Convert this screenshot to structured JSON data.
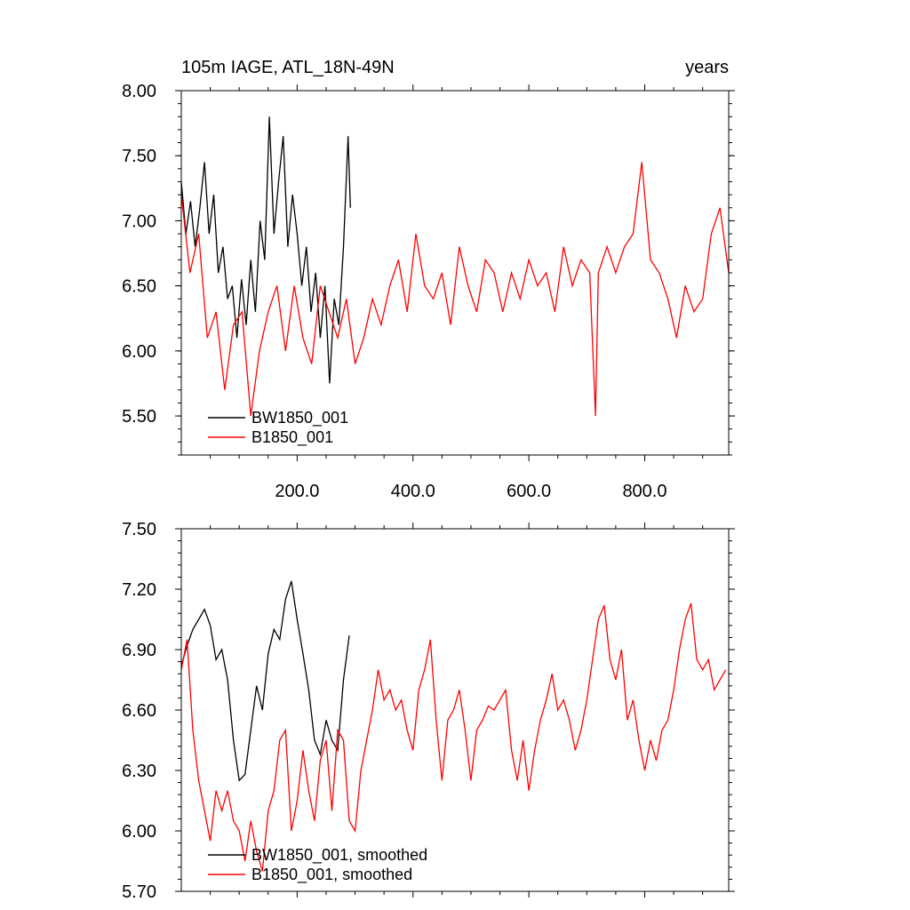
{
  "colors": {
    "bw": "#000000",
    "b": "#ff0000",
    "axis": "#000000"
  },
  "chart_data": [
    {
      "type": "line",
      "title": "105m IAGE, ATL_18N-49N",
      "units_label": "years",
      "xlabel": "",
      "ylabel": "",
      "xlim": [
        0,
        945
      ],
      "ylim": [
        5.2,
        8.0
      ],
      "x_ticks": [
        200,
        400,
        600,
        800
      ],
      "x_tick_labels": [
        "200.0",
        "400.0",
        "600.0",
        "800.0"
      ],
      "y_ticks": [
        5.5,
        6.0,
        6.5,
        7.0,
        7.5,
        8.0
      ],
      "y_tick_labels": [
        "5.50",
        "6.00",
        "6.50",
        "7.00",
        "7.50",
        "8.00"
      ],
      "legend_position": "bottom-left",
      "series": [
        {
          "name": "BW1850_001",
          "color": "#000000",
          "x": [
            0,
            8,
            16,
            24,
            32,
            40,
            48,
            56,
            64,
            72,
            80,
            88,
            96,
            104,
            112,
            120,
            128,
            136,
            144,
            152,
            160,
            168,
            176,
            184,
            192,
            200,
            208,
            216,
            224,
            232,
            240,
            248,
            256,
            264,
            272,
            280,
            288,
            292
          ],
          "values": [
            7.3,
            6.9,
            7.15,
            6.8,
            7.1,
            7.45,
            6.9,
            7.2,
            6.6,
            6.8,
            6.4,
            6.5,
            6.1,
            6.55,
            6.2,
            6.7,
            6.3,
            7.0,
            6.7,
            7.8,
            6.9,
            7.3,
            7.65,
            6.8,
            7.2,
            6.9,
            6.5,
            6.8,
            6.3,
            6.6,
            6.1,
            6.5,
            5.75,
            6.4,
            6.2,
            6.8,
            7.65,
            7.1
          ]
        },
        {
          "name": "B1850_001",
          "color": "#ff0000",
          "x": [
            0,
            15,
            30,
            45,
            60,
            75,
            90,
            105,
            120,
            135,
            150,
            165,
            180,
            195,
            210,
            225,
            240,
            255,
            270,
            285,
            300,
            315,
            330,
            345,
            360,
            375,
            390,
            405,
            420,
            435,
            450,
            465,
            480,
            495,
            510,
            525,
            540,
            555,
            570,
            585,
            600,
            615,
            630,
            645,
            660,
            675,
            690,
            705,
            715,
            720,
            735,
            750,
            765,
            780,
            795,
            810,
            825,
            840,
            855,
            870,
            885,
            900,
            915,
            930,
            945
          ],
          "values": [
            7.2,
            6.6,
            6.9,
            6.1,
            6.3,
            5.7,
            6.2,
            6.3,
            5.5,
            6.0,
            6.3,
            6.5,
            6.0,
            6.5,
            6.1,
            5.9,
            6.5,
            6.3,
            6.1,
            6.4,
            5.9,
            6.1,
            6.4,
            6.2,
            6.5,
            6.7,
            6.3,
            6.9,
            6.5,
            6.4,
            6.6,
            6.2,
            6.8,
            6.5,
            6.3,
            6.7,
            6.6,
            6.3,
            6.6,
            6.4,
            6.7,
            6.5,
            6.6,
            6.3,
            6.8,
            6.5,
            6.7,
            6.6,
            5.5,
            6.6,
            6.8,
            6.6,
            6.8,
            6.9,
            7.45,
            6.7,
            6.6,
            6.4,
            6.1,
            6.5,
            6.3,
            6.4,
            6.9,
            7.1,
            6.6
          ]
        }
      ]
    },
    {
      "type": "line",
      "title": "",
      "xlabel": "",
      "ylabel": "",
      "xlim": [
        0,
        945
      ],
      "ylim": [
        5.7,
        7.5
      ],
      "x_ticks": [
        200,
        400,
        600,
        800
      ],
      "x_tick_labels": [],
      "y_ticks": [
        5.7,
        6.0,
        6.3,
        6.6,
        6.9,
        7.2,
        7.5
      ],
      "y_tick_labels": [
        "5.70",
        "6.00",
        "6.30",
        "6.60",
        "6.90",
        "7.20",
        "7.50"
      ],
      "legend_position": "bottom-left",
      "series": [
        {
          "name": "BW1850_001, smoothed",
          "color": "#000000",
          "x": [
            0,
            10,
            20,
            30,
            40,
            50,
            60,
            70,
            80,
            90,
            100,
            110,
            120,
            130,
            140,
            150,
            160,
            170,
            180,
            190,
            200,
            210,
            220,
            230,
            240,
            250,
            260,
            270,
            280,
            290
          ],
          "values": [
            6.82,
            6.92,
            7.0,
            7.05,
            7.1,
            7.02,
            6.85,
            6.9,
            6.75,
            6.45,
            6.25,
            6.28,
            6.5,
            6.72,
            6.6,
            6.88,
            7.0,
            6.95,
            7.15,
            7.24,
            7.05,
            6.88,
            6.7,
            6.45,
            6.38,
            6.55,
            6.45,
            6.4,
            6.75,
            6.97
          ]
        },
        {
          "name": "B1850_001, smoothed",
          "color": "#ff0000",
          "x": [
            0,
            10,
            20,
            30,
            40,
            50,
            60,
            70,
            80,
            90,
            100,
            110,
            120,
            130,
            140,
            150,
            160,
            170,
            180,
            190,
            200,
            210,
            220,
            230,
            240,
            250,
            260,
            270,
            280,
            290,
            300,
            310,
            320,
            330,
            340,
            350,
            360,
            370,
            380,
            390,
            400,
            410,
            420,
            430,
            440,
            450,
            460,
            470,
            480,
            490,
            500,
            510,
            520,
            530,
            540,
            550,
            560,
            570,
            580,
            590,
            600,
            610,
            620,
            630,
            640,
            650,
            660,
            670,
            680,
            690,
            700,
            710,
            720,
            730,
            740,
            750,
            760,
            770,
            780,
            790,
            800,
            810,
            820,
            830,
            840,
            850,
            860,
            870,
            880,
            890,
            900,
            910,
            920,
            930,
            940
          ],
          "values": [
            6.8,
            6.95,
            6.5,
            6.25,
            6.1,
            5.95,
            6.2,
            6.1,
            6.2,
            6.05,
            6.0,
            5.85,
            6.05,
            5.9,
            5.8,
            6.1,
            6.2,
            6.45,
            6.5,
            6.0,
            6.15,
            6.4,
            6.2,
            6.05,
            6.35,
            6.45,
            6.1,
            6.5,
            6.45,
            6.05,
            6.0,
            6.3,
            6.45,
            6.6,
            6.8,
            6.65,
            6.7,
            6.6,
            6.65,
            6.5,
            6.4,
            6.7,
            6.8,
            6.95,
            6.55,
            6.25,
            6.55,
            6.6,
            6.7,
            6.5,
            6.25,
            6.5,
            6.55,
            6.62,
            6.6,
            6.65,
            6.7,
            6.4,
            6.25,
            6.45,
            6.2,
            6.4,
            6.55,
            6.65,
            6.78,
            6.6,
            6.65,
            6.55,
            6.4,
            6.5,
            6.65,
            6.85,
            7.05,
            7.12,
            6.85,
            6.75,
            6.9,
            6.55,
            6.65,
            6.45,
            6.3,
            6.45,
            6.35,
            6.5,
            6.55,
            6.7,
            6.9,
            7.05,
            7.13,
            6.85,
            6.8,
            6.85,
            6.7,
            6.75,
            6.8
          ]
        }
      ]
    }
  ]
}
